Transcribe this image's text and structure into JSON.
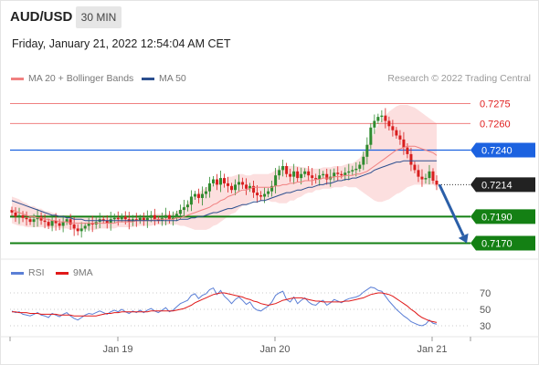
{
  "header": {
    "symbol": "AUD/USD",
    "timeframe": "30 MIN",
    "datetime": "Friday, January 21, 2022 12:54:04 AM CET",
    "copyright": "Research © 2022 Trading Central"
  },
  "legend": {
    "items": [
      {
        "label": "MA 20 + Bollinger Bands",
        "color": "#f08080"
      },
      {
        "label": "MA 50",
        "color": "#2c4f8f"
      }
    ]
  },
  "rsi_legend": {
    "items": [
      {
        "label": "RSI",
        "color": "#5b7fd6"
      },
      {
        "label": "9MA",
        "color": "#e01919"
      }
    ]
  },
  "colors": {
    "candle_up": "#2e8b2e",
    "candle_down": "#d81e1e",
    "band_fill": "#fbd9d9",
    "ma20": "#f08080",
    "ma50": "#2c4f8f",
    "resistance": "#f08080",
    "pivot": "#1c62e0",
    "support": "#148014",
    "arrow": "#2b5fa8",
    "rsi": "#5b7fd6",
    "rsi_ma": "#e01919"
  },
  "chart_data": [
    {
      "type": "candlestick",
      "title": "AUD/USD",
      "timeframe": "30 MIN",
      "x_ticks": [
        "Jan 19",
        "Jan 20",
        "Jan 21"
      ],
      "ylim": [
        0.716,
        0.7285
      ],
      "levels": [
        {
          "value": 0.7275,
          "label": "0.7275",
          "kind": "resistance"
        },
        {
          "value": 0.726,
          "label": "0.7260",
          "kind": "resistance"
        },
        {
          "value": 0.724,
          "label": "0.7240",
          "kind": "pivot"
        },
        {
          "value": 0.7214,
          "label": "0.7214",
          "kind": "last"
        },
        {
          "value": 0.719,
          "label": "0.7190",
          "kind": "support"
        },
        {
          "value": 0.717,
          "label": "0.7170",
          "kind": "support"
        }
      ],
      "forecast_arrow": {
        "from": 0.7214,
        "to": 0.717,
        "direction": "down"
      },
      "close_series": [
        0.7193,
        0.719,
        0.7191,
        0.7189,
        0.7188,
        0.7186,
        0.7188,
        0.719,
        0.7187,
        0.7186,
        0.7183,
        0.7187,
        0.7185,
        0.7183,
        0.7186,
        0.7188,
        0.7184,
        0.7181,
        0.7179,
        0.7181,
        0.7183,
        0.7185,
        0.7184,
        0.7186,
        0.7188,
        0.7187,
        0.7185,
        0.7188,
        0.7189,
        0.7188,
        0.719,
        0.7188,
        0.7186,
        0.7188,
        0.7187,
        0.7189,
        0.7187,
        0.7189,
        0.7191,
        0.7188,
        0.7187,
        0.7189,
        0.7191,
        0.7188,
        0.7189,
        0.7192,
        0.7195,
        0.7197,
        0.7199,
        0.7205,
        0.7207,
        0.7204,
        0.7207,
        0.7209,
        0.7215,
        0.7218,
        0.7214,
        0.7219,
        0.7215,
        0.7213,
        0.721,
        0.7214,
        0.7216,
        0.7214,
        0.7211,
        0.7213,
        0.7208,
        0.7206,
        0.7205,
        0.7207,
        0.7209,
        0.7213,
        0.7221,
        0.7225,
        0.7228,
        0.7222,
        0.722,
        0.7224,
        0.7219,
        0.7222,
        0.7224,
        0.7221,
        0.7219,
        0.7218,
        0.7221,
        0.7222,
        0.7218,
        0.722,
        0.7223,
        0.7222,
        0.7221,
        0.7223,
        0.7224,
        0.7225,
        0.7226,
        0.7229,
        0.7235,
        0.7244,
        0.7257,
        0.7262,
        0.7265,
        0.7266,
        0.7262,
        0.7258,
        0.7255,
        0.7251,
        0.7248,
        0.7242,
        0.7237,
        0.7229,
        0.7225,
        0.722,
        0.7218,
        0.7219,
        0.7224,
        0.7217,
        0.7214
      ],
      "ma20_series": [
        0.7195,
        0.7194,
        0.7193,
        0.7192,
        0.7191,
        0.719,
        0.719,
        0.7189,
        0.7189,
        0.7188,
        0.7188,
        0.7187,
        0.7187,
        0.7186,
        0.7186,
        0.7186,
        0.7185,
        0.7185,
        0.7185,
        0.7185,
        0.7185,
        0.7185,
        0.7185,
        0.7185,
        0.7185,
        0.7185,
        0.7185,
        0.7185,
        0.7185,
        0.7186,
        0.7186,
        0.7186,
        0.7186,
        0.7186,
        0.7187,
        0.7187,
        0.7187,
        0.7187,
        0.7187,
        0.7188,
        0.7188,
        0.7188,
        0.7188,
        0.7188,
        0.7188,
        0.7189,
        0.7189,
        0.719,
        0.7191,
        0.7192,
        0.7193,
        0.7194,
        0.7195,
        0.7196,
        0.7197,
        0.7199,
        0.72,
        0.7202,
        0.7203,
        0.7205,
        0.7206,
        0.7207,
        0.7209,
        0.721,
        0.721,
        0.7211,
        0.7212,
        0.7212,
        0.7212,
        0.7212,
        0.7212,
        0.7212,
        0.7213,
        0.7213,
        0.7214,
        0.7214,
        0.7215,
        0.7215,
        0.7216,
        0.7216,
        0.7217,
        0.7217,
        0.7217,
        0.7218,
        0.7218,
        0.7219,
        0.7219,
        0.7219,
        0.722,
        0.722,
        0.722,
        0.7221,
        0.7221,
        0.7221,
        0.7222,
        0.7222,
        0.7223,
        0.7224,
        0.7226,
        0.7228,
        0.723,
        0.7232,
        0.7234,
        0.7236,
        0.7238,
        0.724,
        0.7241,
        0.7242,
        0.7243,
        0.7243,
        0.7243,
        0.7242,
        0.7241,
        0.724,
        0.7239,
        0.7238,
        0.7236
      ],
      "band_halfwidth_series": [
        0.001,
        0.001,
        0.001,
        0.0009,
        0.0009,
        0.0008,
        0.0008,
        0.0007,
        0.0007,
        0.0006,
        0.0006,
        0.0006,
        0.0005,
        0.0005,
        0.0005,
        0.0005,
        0.0005,
        0.0005,
        0.0005,
        0.0005,
        0.0005,
        0.0005,
        0.0005,
        0.0005,
        0.0004,
        0.0004,
        0.0004,
        0.0004,
        0.0004,
        0.0004,
        0.0004,
        0.0004,
        0.0004,
        0.0004,
        0.0004,
        0.0004,
        0.0004,
        0.0004,
        0.0004,
        0.0004,
        0.0004,
        0.0004,
        0.0004,
        0.0004,
        0.0004,
        0.0005,
        0.0006,
        0.0007,
        0.0009,
        0.0011,
        0.0013,
        0.0014,
        0.0015,
        0.0016,
        0.0016,
        0.0016,
        0.0016,
        0.0016,
        0.0015,
        0.0015,
        0.0014,
        0.0014,
        0.0013,
        0.0012,
        0.0011,
        0.001,
        0.001,
        0.001,
        0.001,
        0.001,
        0.001,
        0.0011,
        0.0012,
        0.0013,
        0.0014,
        0.0014,
        0.0013,
        0.0013,
        0.0012,
        0.0011,
        0.001,
        0.0009,
        0.0009,
        0.0008,
        0.0008,
        0.0008,
        0.0008,
        0.0008,
        0.0008,
        0.0008,
        0.0008,
        0.0008,
        0.0009,
        0.0009,
        0.001,
        0.0012,
        0.0015,
        0.0018,
        0.0022,
        0.0026,
        0.0029,
        0.0031,
        0.0032,
        0.0033,
        0.0033,
        0.0033,
        0.0033,
        0.0032,
        0.0031,
        0.003,
        0.0029,
        0.0028,
        0.0027,
        0.0026,
        0.0025,
        0.0024,
        0.0024
      ],
      "ma50_series": [
        0.7202,
        0.7201,
        0.72,
        0.7199,
        0.7198,
        0.7197,
        0.7196,
        0.7195,
        0.7194,
        0.7193,
        0.7192,
        0.7191,
        0.7191,
        0.719,
        0.719,
        0.7189,
        0.7189,
        0.7188,
        0.7188,
        0.7188,
        0.7187,
        0.7187,
        0.7187,
        0.7187,
        0.7187,
        0.7187,
        0.7187,
        0.7187,
        0.7187,
        0.7187,
        0.7187,
        0.7187,
        0.7187,
        0.7187,
        0.7187,
        0.7187,
        0.7187,
        0.7187,
        0.7187,
        0.7187,
        0.7187,
        0.7187,
        0.7187,
        0.7187,
        0.7187,
        0.7187,
        0.7188,
        0.7188,
        0.7188,
        0.7189,
        0.7189,
        0.719,
        0.719,
        0.7191,
        0.7192,
        0.7193,
        0.7193,
        0.7194,
        0.7195,
        0.7196,
        0.7196,
        0.7197,
        0.7198,
        0.7199,
        0.7199,
        0.72,
        0.7201,
        0.7201,
        0.7202,
        0.7202,
        0.7203,
        0.7204,
        0.7205,
        0.7206,
        0.7207,
        0.7208,
        0.7208,
        0.7209,
        0.721,
        0.721,
        0.7211,
        0.7212,
        0.7212,
        0.7213,
        0.7214,
        0.7214,
        0.7215,
        0.7215,
        0.7216,
        0.7217,
        0.7217,
        0.7218,
        0.7218,
        0.7219,
        0.7219,
        0.722,
        0.7221,
        0.7222,
        0.7223,
        0.7225,
        0.7226,
        0.7227,
        0.7228,
        0.7229,
        0.723,
        0.7231,
        0.7231,
        0.7232,
        0.7232,
        0.7232,
        0.7232,
        0.7232,
        0.7232,
        0.7232,
        0.7232,
        0.7232,
        0.7232
      ]
    },
    {
      "type": "line",
      "series": [
        {
          "name": "RSI",
          "values": [
            48,
            46,
            47,
            44,
            43,
            42,
            44,
            46,
            43,
            42,
            40,
            45,
            43,
            41,
            44,
            46,
            42,
            39,
            37,
            40,
            43,
            45,
            44,
            46,
            48,
            46,
            44,
            47,
            49,
            47,
            50,
            47,
            45,
            48,
            46,
            49,
            46,
            49,
            51,
            48,
            46,
            49,
            52,
            47,
            49,
            53,
            57,
            59,
            61,
            67,
            69,
            63,
            67,
            69,
            74,
            76,
            68,
            73,
            66,
            62,
            57,
            62,
            65,
            61,
            56,
            59,
            52,
            49,
            48,
            51,
            54,
            59,
            67,
            70,
            72,
            62,
            59,
            65,
            57,
            61,
            64,
            59,
            56,
            55,
            59,
            61,
            55,
            58,
            62,
            60,
            58,
            61,
            63,
            64,
            65,
            67,
            71,
            74,
            77,
            76,
            73,
            72,
            66,
            60,
            55,
            50,
            46,
            42,
            39,
            35,
            33,
            31,
            30,
            32,
            37,
            33,
            32
          ]
        },
        {
          "name": "9MA",
          "values": [
            47,
            47,
            46,
            46,
            46,
            45,
            45,
            45,
            44,
            44,
            44,
            44,
            44,
            43,
            43,
            43,
            43,
            42,
            42,
            42,
            42,
            42,
            42,
            42,
            43,
            44,
            45,
            45,
            46,
            46,
            47,
            47,
            47,
            47,
            47,
            47,
            47,
            47,
            48,
            48,
            48,
            48,
            48,
            48,
            48,
            49,
            50,
            51,
            53,
            55,
            58,
            60,
            62,
            64,
            66,
            68,
            69,
            70,
            70,
            69,
            68,
            67,
            66,
            65,
            63,
            62,
            60,
            59,
            57,
            56,
            55,
            56,
            57,
            59,
            61,
            62,
            63,
            64,
            64,
            64,
            63,
            62,
            61,
            60,
            60,
            59,
            59,
            59,
            59,
            59,
            59,
            60,
            60,
            61,
            62,
            63,
            64,
            66,
            68,
            69,
            70,
            70,
            69,
            68,
            66,
            63,
            60,
            57,
            54,
            50,
            47,
            43,
            40,
            38,
            36,
            35,
            34
          ]
        }
      ],
      "y_ticks": [
        30,
        50,
        70
      ],
      "ylim": [
        30,
        70
      ]
    }
  ]
}
